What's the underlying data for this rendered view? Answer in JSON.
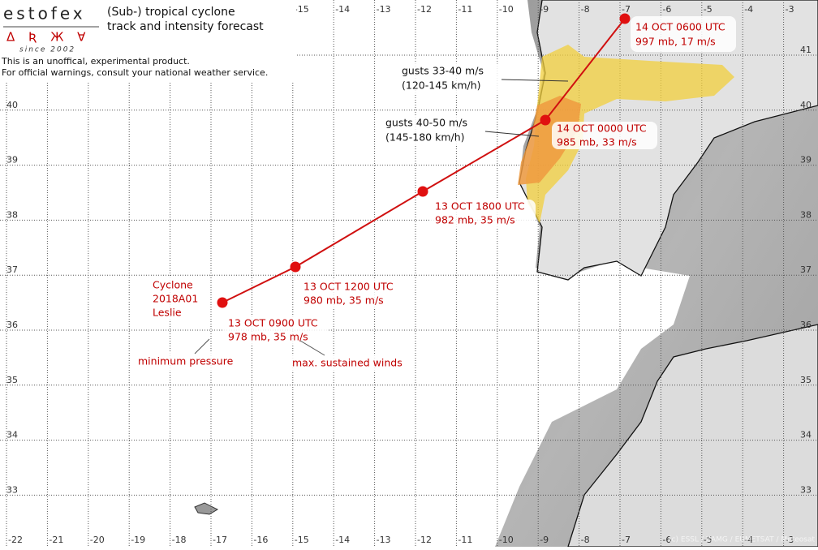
{
  "header": {
    "logo": "estofex",
    "glyphs": "Δ Ʀ Ж ∀",
    "since": "since 2002",
    "title_line1": "(Sub-) tropical cyclone",
    "title_line2": "track and intensity forecast",
    "disclaimer_line1": "This is an unoffical, experimental product.",
    "disclaimer_line2": "For official warnings, consult your national weather service."
  },
  "grid": {
    "longitudes": [
      "-22",
      "-21",
      "-20",
      "-19",
      "-18",
      "-17",
      "-16",
      "-15",
      "-14",
      "-13",
      "-12",
      "-11",
      "-10",
      "-9",
      "-8",
      "-7",
      "-6",
      "-5",
      "-4",
      "-3"
    ],
    "latitudes": [
      "41",
      "40",
      "39",
      "38",
      "37",
      "36",
      "35",
      "34",
      "33"
    ]
  },
  "cyclone": {
    "name_lines": [
      "Cyclone",
      "2018A01",
      "Leslie"
    ]
  },
  "track": [
    {
      "time": "13 OCT 0900 UTC",
      "details": "978 mb, 35 m/s"
    },
    {
      "time": "13 OCT 1200 UTC",
      "details": "980 mb, 35 m/s"
    },
    {
      "time": "13 OCT 1800 UTC",
      "details": "982 mb, 35 m/s"
    },
    {
      "time": "14 OCT 0000 UTC",
      "details": "985 mb, 33 m/s"
    },
    {
      "time": "14 OCT 0600 UTC",
      "details": "997 mb, 17 m/s"
    }
  ],
  "legend": {
    "pressure": "minimum pressure",
    "winds": "max. sustained winds"
  },
  "gusts": [
    {
      "speed": "gusts 33-40 m/s",
      "kmh": "(120-145 km/h)"
    },
    {
      "speed": "gusts 40-50 m/s",
      "kmh": "(145-180 km/h)"
    }
  ],
  "credit": "(c) ESSL / ZAMG / EUMETSAT / Meteosat"
}
